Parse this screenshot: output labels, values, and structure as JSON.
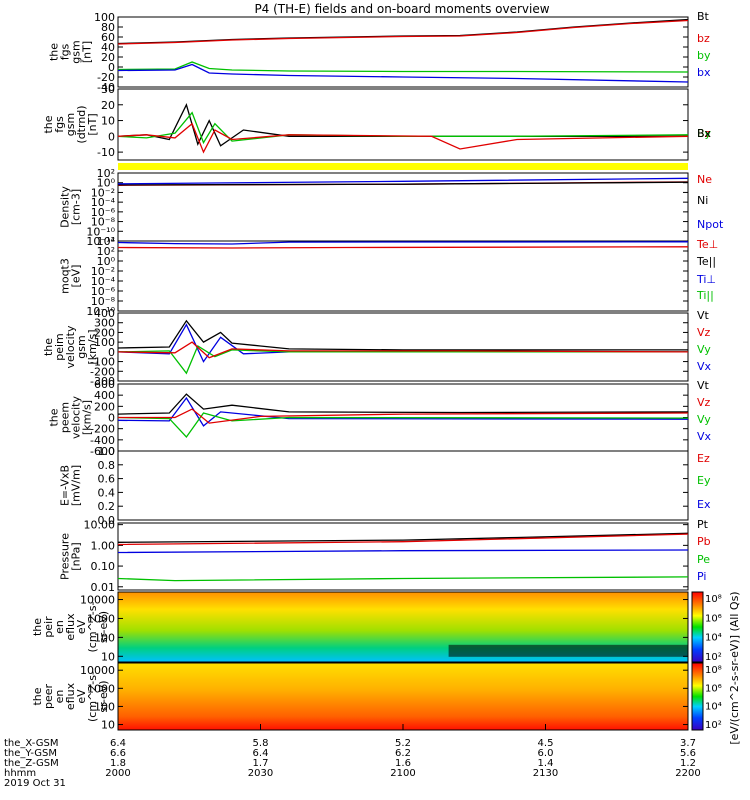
{
  "title": "P4 (TH-E) fields and on-board moments overview",
  "colors": {
    "black": "#000000",
    "red": "#e00000",
    "green": "#00c000",
    "blue": "#0000e0",
    "yellow": "#ffff00"
  },
  "chart_data": [
    {
      "type": "line",
      "ylabel": [
        "the",
        "fgs",
        "gsm",
        "[nT]"
      ],
      "ylim": [
        -40,
        100
      ],
      "yticks": [
        "100",
        "80",
        "60",
        "40",
        "20",
        "0",
        "-20",
        "-40"
      ],
      "yticks_values": [
        100,
        80,
        60,
        40,
        20,
        0,
        -20,
        -40
      ],
      "legend": [
        "Bt",
        "bz",
        "by",
        "bx"
      ],
      "series": [
        {
          "name": "Bt",
          "color": "black",
          "t": [
            0,
            0.1,
            0.2,
            0.3,
            0.4,
            0.5,
            0.6,
            0.7,
            0.8,
            0.9,
            1
          ],
          "values": [
            47,
            50,
            55,
            58,
            60,
            62,
            63,
            70,
            80,
            88,
            95
          ]
        },
        {
          "name": "bz",
          "color": "red",
          "t": [
            0,
            0.1,
            0.2,
            0.3,
            0.4,
            0.5,
            0.6,
            0.7,
            0.8,
            0.9,
            1
          ],
          "values": [
            46,
            49,
            54,
            57,
            59,
            61,
            62,
            69,
            79,
            87,
            93
          ]
        },
        {
          "name": "by",
          "color": "green",
          "t": [
            0,
            0.1,
            0.13,
            0.16,
            0.2,
            0.3,
            0.5,
            0.7,
            1
          ],
          "values": [
            -5,
            -4,
            10,
            -3,
            -6,
            -8,
            -9,
            -9,
            -10
          ]
        },
        {
          "name": "bx",
          "color": "blue",
          "t": [
            0,
            0.1,
            0.13,
            0.16,
            0.2,
            0.3,
            0.5,
            0.7,
            1
          ],
          "values": [
            -7,
            -6,
            5,
            -12,
            -14,
            -17,
            -20,
            -23,
            -30
          ]
        }
      ]
    },
    {
      "type": "line",
      "ylabel": [
        "the",
        "fgs",
        "gsm",
        "(dtrnd)",
        "[nT]"
      ],
      "ylim": [
        -15,
        30
      ],
      "yticks": [
        "30",
        "20",
        "10",
        "0",
        "-10"
      ],
      "yticks_values": [
        30,
        20,
        10,
        0,
        -10
      ],
      "legend": [
        "Bz",
        "By",
        "Bx"
      ],
      "series": [
        {
          "name": "Bz",
          "color": "black",
          "t": [
            0,
            0.05,
            0.09,
            0.12,
            0.14,
            0.16,
            0.18,
            0.22,
            0.3,
            0.5,
            0.7,
            1
          ],
          "values": [
            0,
            1,
            -2,
            20,
            -5,
            10,
            -6,
            4,
            0,
            0,
            0,
            0
          ]
        },
        {
          "name": "By",
          "color": "green",
          "t": [
            0,
            0.05,
            0.1,
            0.13,
            0.15,
            0.17,
            0.2,
            0.3,
            0.5,
            0.7,
            1
          ],
          "values": [
            0,
            -1,
            2,
            15,
            -4,
            8,
            -3,
            1,
            0,
            0,
            1
          ]
        },
        {
          "name": "Bx",
          "color": "red",
          "t": [
            0,
            0.05,
            0.1,
            0.13,
            0.15,
            0.17,
            0.2,
            0.3,
            0.55,
            0.6,
            0.7,
            1
          ],
          "values": [
            0,
            1,
            -1,
            8,
            -10,
            4,
            -2,
            1,
            0,
            -8,
            -2,
            0
          ]
        }
      ]
    },
    {
      "type": "line",
      "ylabel": [
        "Density",
        "[cm-3]"
      ],
      "yscale": "log",
      "ylim": [
        1e-12,
        100
      ],
      "yticks": [
        "10²",
        "10⁰",
        "10⁻²",
        "10⁻⁴",
        "10⁻⁶",
        "10⁻⁸",
        "10⁻¹⁰",
        "10⁻¹²"
      ],
      "yticks_exp": [
        2,
        0,
        -2,
        -4,
        -6,
        -8,
        -10,
        -12
      ],
      "legend": [
        "Ne",
        "Ni",
        "Npot"
      ],
      "series": [
        {
          "name": "Ne",
          "color": "red",
          "t": [
            0,
            0.5,
            1
          ],
          "values": [
            0.3,
            0.5,
            1.5
          ]
        },
        {
          "name": "Ni",
          "color": "black",
          "t": [
            0,
            0.5,
            1
          ],
          "values": [
            0.35,
            0.5,
            1.3
          ]
        },
        {
          "name": "Npot",
          "color": "blue",
          "t": [
            0,
            0.5,
            1
          ],
          "values": [
            0.6,
            2,
            8
          ]
        }
      ]
    },
    {
      "type": "line",
      "ylabel": [
        "moqt3",
        "[eV]"
      ],
      "yscale": "log",
      "ylim": [
        1e-10,
        10000.0
      ],
      "yticks": [
        "10⁴",
        "10²",
        "10⁰",
        "10⁻²",
        "10⁻⁴",
        "10⁻⁶",
        "10⁻⁸",
        "10⁻¹⁰"
      ],
      "yticks_exp": [
        4,
        2,
        0,
        -2,
        -4,
        -6,
        -8,
        -10
      ],
      "legend": [
        "Te⊥",
        "Te||",
        "Ti⊥",
        "Ti||"
      ],
      "series": [
        {
          "name": "Ti⊥",
          "color": "blue",
          "t": [
            0,
            0.1,
            0.2,
            0.3,
            1
          ],
          "values": [
            5000,
            3000,
            2500,
            6000,
            7000
          ]
        },
        {
          "name": "Te⊥",
          "color": "red",
          "t": [
            0,
            0.2,
            0.4,
            1
          ],
          "values": [
            500,
            400,
            500,
            700
          ]
        }
      ]
    },
    {
      "type": "line",
      "ylabel": [
        "the",
        "peim",
        "velocity",
        "gsm",
        "[km/s]"
      ],
      "ylim": [
        -300,
        400
      ],
      "yticks": [
        "400",
        "300",
        "200",
        "100",
        "0",
        "-100",
        "-200",
        "-300"
      ],
      "yticks_values": [
        400,
        300,
        200,
        100,
        0,
        -100,
        -200,
        -300
      ],
      "legend": [
        "Vt",
        "Vz",
        "Vy",
        "Vx"
      ],
      "series": [
        {
          "name": "Vt",
          "color": "black",
          "t": [
            0,
            0.09,
            0.12,
            0.15,
            0.18,
            0.2,
            0.25,
            0.3,
            0.5,
            1
          ],
          "values": [
            40,
            50,
            320,
            100,
            200,
            90,
            60,
            30,
            20,
            20
          ]
        },
        {
          "name": "Vx",
          "color": "blue",
          "t": [
            0,
            0.09,
            0.12,
            0.15,
            0.18,
            0.22,
            0.3,
            0.5,
            1
          ],
          "values": [
            0,
            -20,
            280,
            -100,
            150,
            -20,
            0,
            0,
            0
          ]
        },
        {
          "name": "Vy",
          "color": "green",
          "t": [
            0,
            0.09,
            0.12,
            0.14,
            0.17,
            0.2,
            0.3,
            0.5,
            1
          ],
          "values": [
            0,
            10,
            -220,
            60,
            -50,
            20,
            0,
            0,
            0
          ]
        },
        {
          "name": "Vz",
          "color": "red",
          "t": [
            0,
            0.1,
            0.13,
            0.16,
            0.2,
            0.3,
            0.6,
            1
          ],
          "values": [
            0,
            -10,
            100,
            -60,
            30,
            10,
            10,
            0
          ]
        }
      ]
    },
    {
      "type": "line",
      "ylabel": [
        "the",
        "peem",
        "velocity",
        "[km/s]"
      ],
      "ylim": [
        -600,
        600
      ],
      "yticks": [
        "600",
        "400",
        "200",
        "0",
        "-200",
        "-400",
        "-600"
      ],
      "yticks_values": [
        600,
        400,
        200,
        0,
        -200,
        -400,
        -600
      ],
      "legend": [
        "Vt",
        "Vz",
        "Vy",
        "Vx"
      ],
      "series": [
        {
          "name": "Vt",
          "color": "black",
          "t": [
            0,
            0.09,
            0.12,
            0.15,
            0.2,
            0.3,
            0.6,
            1
          ],
          "values": [
            60,
            80,
            420,
            150,
            220,
            100,
            90,
            100
          ]
        },
        {
          "name": "Vx",
          "color": "blue",
          "t": [
            0,
            0.09,
            0.12,
            0.15,
            0.18,
            0.3,
            1
          ],
          "values": [
            -50,
            -60,
            350,
            -150,
            100,
            -20,
            -30
          ]
        },
        {
          "name": "Vy",
          "color": "green",
          "t": [
            0,
            0.09,
            0.12,
            0.15,
            0.2,
            0.3,
            1
          ],
          "values": [
            0,
            -20,
            -350,
            80,
            -60,
            0,
            -10
          ]
        },
        {
          "name": "Vz",
          "color": "red",
          "t": [
            0,
            0.1,
            0.13,
            0.16,
            0.25,
            0.5,
            1
          ],
          "values": [
            0,
            0,
            150,
            -100,
            20,
            60,
            80
          ]
        }
      ]
    },
    {
      "type": "line",
      "ylabel": [
        "E=-VxB",
        "[mV/m]"
      ],
      "ylim": [
        0,
        1
      ],
      "yticks": [
        "1.0",
        "0.8",
        "0.6",
        "0.4",
        "0.2",
        "0.0"
      ],
      "yticks_values": [
        1,
        0.8,
        0.6,
        0.4,
        0.2,
        0
      ],
      "legend": [
        "Ez",
        "Ey",
        "Ex"
      ],
      "series": []
    },
    {
      "type": "line",
      "ylabel": [
        "Pressure",
        "[nPa]"
      ],
      "yscale": "log",
      "ylim": [
        0.007,
        12
      ],
      "yticks": [
        "10.00",
        "1.00",
        "0.10",
        "0.01"
      ],
      "yticks_values": [
        10,
        1,
        0.1,
        0.01
      ],
      "legend": [
        "Pt",
        "Pb",
        "Pe",
        "Pi"
      ],
      "series": [
        {
          "name": "Pt",
          "color": "black",
          "t": [
            0,
            0.5,
            0.7,
            1
          ],
          "values": [
            1.4,
            1.8,
            2.4,
            3.8
          ]
        },
        {
          "name": "Pb",
          "color": "red",
          "t": [
            0,
            0.5,
            0.7,
            1
          ],
          "values": [
            1.1,
            1.5,
            2.1,
            3.5
          ]
        },
        {
          "name": "Pi",
          "color": "blue",
          "t": [
            0,
            0.5,
            1
          ],
          "values": [
            0.45,
            0.55,
            0.6
          ]
        },
        {
          "name": "Pe",
          "color": "green",
          "t": [
            0,
            0.1,
            0.5,
            1
          ],
          "values": [
            0.025,
            0.02,
            0.025,
            0.03
          ]
        }
      ]
    },
    {
      "type": "heatmap",
      "ylabel": [
        "the",
        "peir",
        "en",
        "eflux",
        "eV",
        "(cm^2-s-",
        "sr-eV)"
      ],
      "yscale": "log",
      "ylim": [
        5,
        25000
      ],
      "yticks": [
        "10000",
        "1000",
        "100",
        "10"
      ],
      "yticks_values": [
        10000,
        1000,
        100,
        10
      ],
      "colorbar": [
        "10⁸",
        "10⁶",
        "10⁴",
        "10²"
      ]
    },
    {
      "type": "heatmap",
      "ylabel": [
        "the",
        "peer",
        "en",
        "eflux",
        "eV",
        "(cm^2-s-",
        "sr-eV)"
      ],
      "yscale": "log",
      "ylim": [
        5,
        25000
      ],
      "yticks": [
        "10000",
        "1000",
        "100",
        "10"
      ],
      "yticks_values": [
        10000,
        1000,
        100,
        10
      ],
      "colorbar": [
        "10⁸",
        "10⁶",
        "10⁴",
        "10²"
      ]
    }
  ],
  "colorbar_label": "[eV/(cm^2-s-sr-eV)] (All Qs)",
  "xaxis": {
    "row_labels": [
      "the_X-GSM",
      "the_Y-GSM",
      "the_Z-GSM",
      "hhmm",
      "2019 Oct 31"
    ],
    "columns": [
      [
        "6.4",
        "6.6",
        "1.8",
        "2000"
      ],
      [
        "5.8",
        "6.4",
        "1.7",
        "2030"
      ],
      [
        "5.2",
        "6.2",
        "1.6",
        "2100"
      ],
      [
        "4.5",
        "6.0",
        "1.4",
        "2130"
      ],
      [
        "3.7",
        "5.6",
        "1.2",
        "2200"
      ]
    ]
  }
}
